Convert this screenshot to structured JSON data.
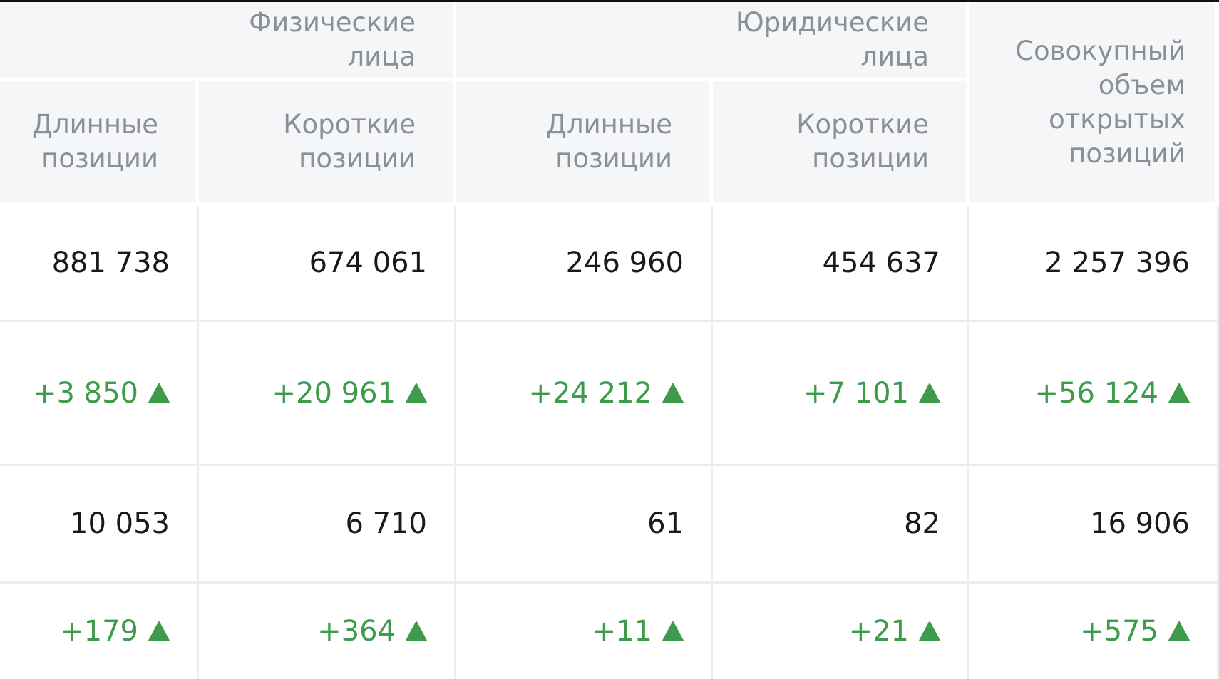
{
  "header": {
    "groups": [
      "Физические лица",
      "Юридические лица",
      "Совокупный объем открытых позиций"
    ],
    "subheaders": [
      "Длинные позиции",
      "Короткие позиции",
      "Длинные позиции",
      "Короткие позиции"
    ]
  },
  "table": {
    "rows": [
      [
        "881 738",
        "674 061",
        "246 960",
        "454 637",
        "2 257 396"
      ],
      [
        "+3 850",
        "+20 961",
        "+24 212",
        "+7 101",
        "+56 124"
      ],
      [
        "10 053",
        "6 710",
        "61",
        "82",
        "16 906"
      ],
      [
        "+179",
        "+364",
        "+11",
        "+21",
        "+575"
      ]
    ]
  }
}
